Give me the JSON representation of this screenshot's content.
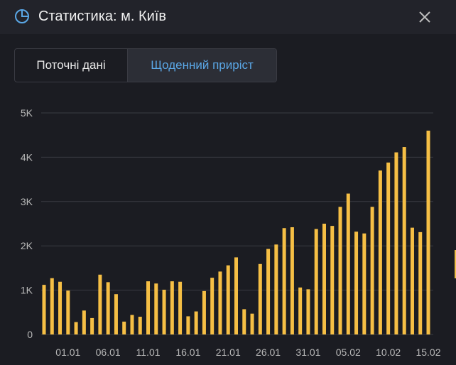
{
  "header": {
    "title": "Статистика: м. Київ",
    "icon": "pie-chart-icon",
    "close_icon": "close-icon"
  },
  "tabs": [
    {
      "label": "Поточні дані",
      "active": false
    },
    {
      "label": "Щоденний приріст",
      "active": true
    }
  ],
  "colors": {
    "accent": "#5aa7e6",
    "bar": "#f6bf45",
    "grid": "#3a3b43",
    "axis_text": "#b8b8b8"
  },
  "chart_data": {
    "type": "bar",
    "title": "",
    "xlabel": "",
    "ylabel": "",
    "ylim": [
      0,
      5000
    ],
    "y_ticks": [
      0,
      1000,
      2000,
      3000,
      4000,
      5000
    ],
    "y_tick_labels": [
      "0",
      "1K",
      "2K",
      "3K",
      "4K",
      "5K"
    ],
    "x_tick_labels": [
      "01.01",
      "06.01",
      "11.01",
      "16.01",
      "21.01",
      "26.01",
      "31.01",
      "05.02",
      "10.02",
      "15.02"
    ],
    "x_tick_index": [
      3,
      8,
      13,
      18,
      23,
      28,
      33,
      38,
      43,
      48
    ],
    "grid": true,
    "values": [
      1120,
      1270,
      1190,
      990,
      280,
      540,
      370,
      1350,
      1180,
      910,
      290,
      440,
      400,
      1200,
      1150,
      1010,
      1200,
      1190,
      410,
      520,
      980,
      1280,
      1420,
      1560,
      1740,
      570,
      470,
      1590,
      1930,
      2030,
      2400,
      2420,
      1060,
      1020,
      2380,
      2500,
      2450,
      2880,
      3180,
      2320,
      2280,
      2880,
      3700,
      3880,
      4110,
      4230,
      2410,
      2310,
      4600
    ]
  }
}
